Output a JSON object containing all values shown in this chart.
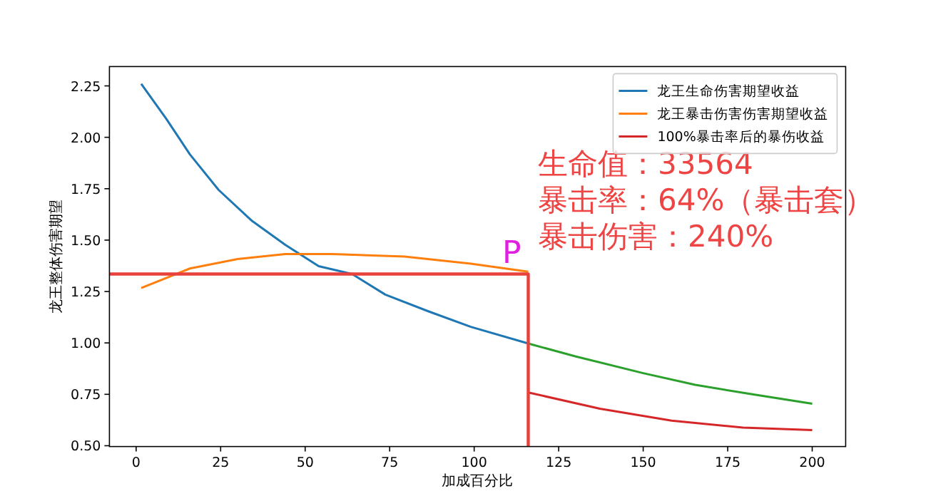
{
  "chart_data": {
    "type": "line",
    "xlabel": "加成百分比",
    "ylabel": "龙王整体伤害期望",
    "xlim": [
      -7.9,
      209.9
    ],
    "ylim": [
      0.496,
      2.344
    ],
    "xticks": [
      0,
      25,
      50,
      75,
      100,
      125,
      150,
      175,
      200
    ],
    "yticks": [
      {
        "value": 0.5,
        "label": "0.50"
      },
      0.75,
      {
        "value": 1,
        "label": "1.00"
      },
      1.25,
      {
        "value": 1.5,
        "label": "1.50"
      },
      1.75,
      {
        "value": 2,
        "label": "2.00"
      },
      2.25
    ],
    "legend": "top right",
    "grid": false,
    "series": [
      {
        "name": "龙王生命伤害期望收益",
        "color": "#1f77b4",
        "x": [
          1.5,
          8.9,
          15.9,
          24.4,
          34.3,
          44.1,
          54,
          63.9,
          73.7,
          86.4,
          99,
          116
        ],
        "values": [
          2.26,
          2.09,
          1.917,
          1.744,
          1.593,
          1.477,
          1.373,
          1.335,
          1.235,
          1.154,
          1.078,
          0.997
        ]
      },
      {
        "name": "龙王暴击伤害伤害期望收益",
        "color": "#ff7f0e",
        "x": [
          1.5,
          15.9,
          30,
          44.1,
          58.2,
          79.4,
          99,
          116
        ],
        "values": [
          1.267,
          1.362,
          1.408,
          1.432,
          1.432,
          1.42,
          1.385,
          1.346
        ]
      },
      {
        "name": "100%暴击率后的暴伤收益",
        "color": "#d62728",
        "x": [
          116,
          137.2,
          158.4,
          179.5,
          200
        ],
        "values": [
          0.759,
          0.68,
          0.622,
          0.588,
          0.576
        ]
      },
      {
        "color": "#2ca02c",
        "x": [
          116,
          130.1,
          150,
          165.4,
          182.3,
          200
        ],
        "values": [
          0.997,
          0.934,
          0.853,
          0.796,
          0.75,
          0.704
        ]
      },
      {
        "color": "#e8403a",
        "x": [
          -7.9,
          116,
          116
        ],
        "values": [
          1.335,
          1.335,
          0.496
        ]
      }
    ],
    "annotations": [
      {
        "text": "P",
        "x": 116,
        "y": 1.346
      },
      "生命值：33564",
      "暴击率：64%（暴击套）",
      "暴击伤害：240%"
    ]
  }
}
